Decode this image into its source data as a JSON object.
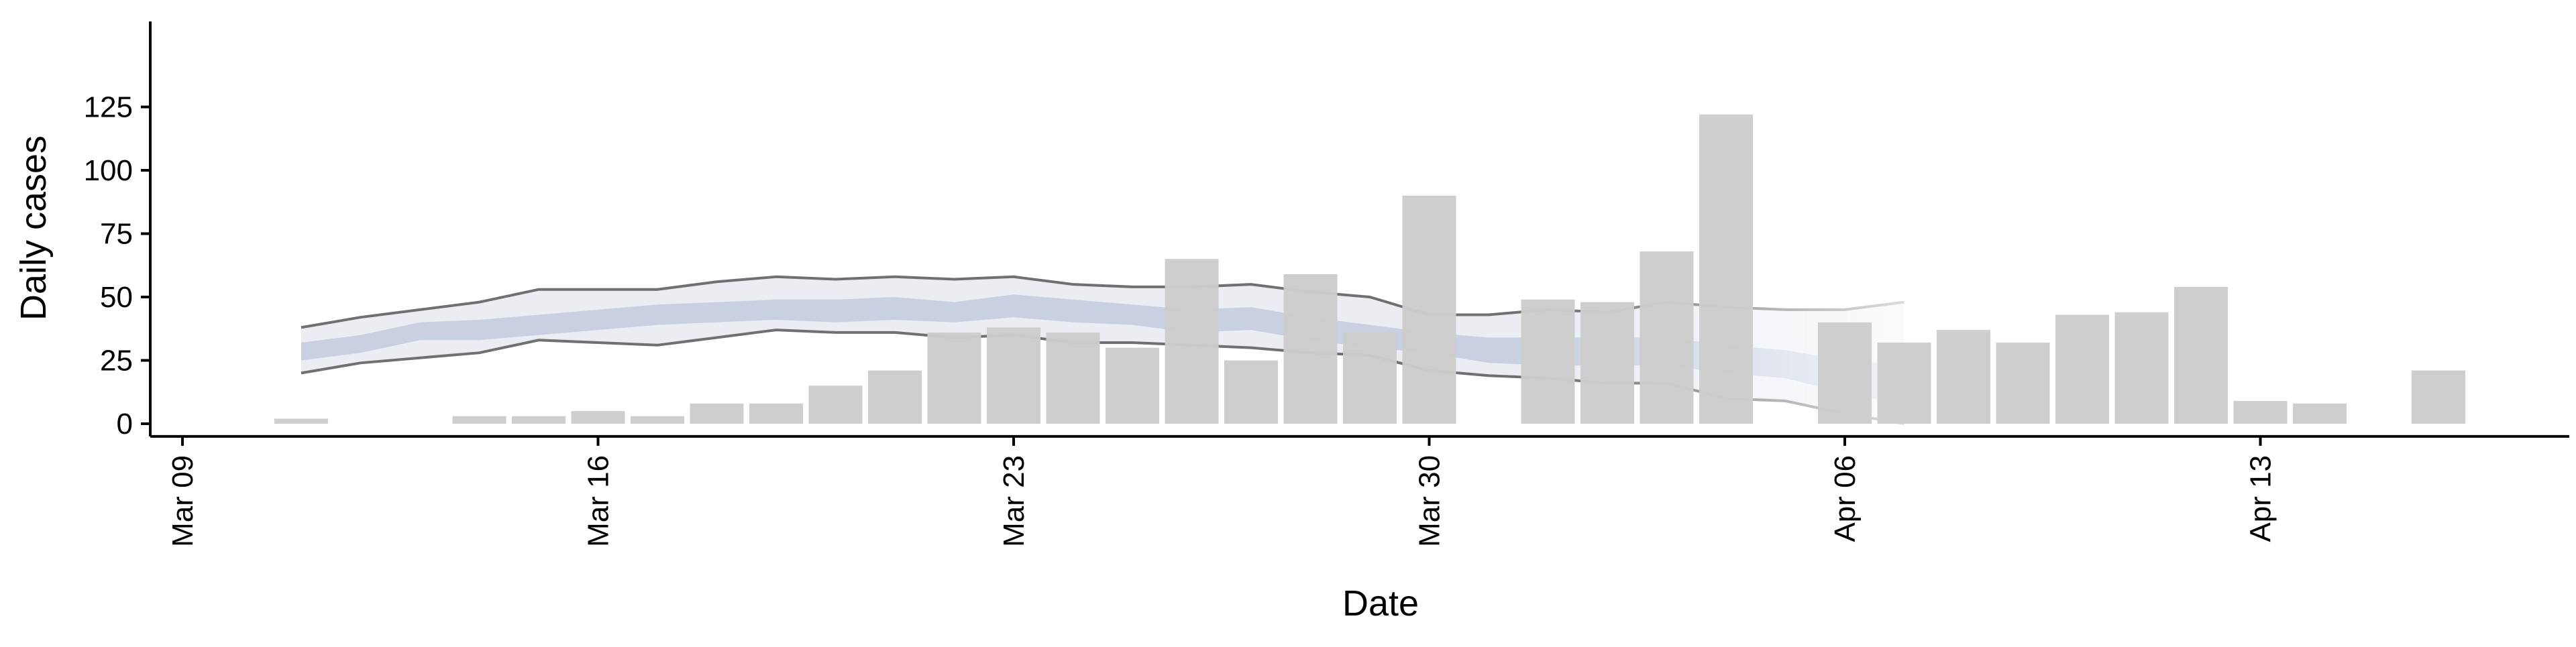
{
  "chart_data": {
    "type": "bar",
    "title": "",
    "xlabel": "Date",
    "ylabel": "Daily cases",
    "x_tick_labels": [
      "Mar 09",
      "Mar 16",
      "Mar 23",
      "Mar 30",
      "Apr 06",
      "Apr 13"
    ],
    "x_tick_dates": [
      "2020-03-09",
      "2020-03-16",
      "2020-03-23",
      "2020-03-30",
      "2020-04-06",
      "2020-04-13"
    ],
    "xlim": [
      "2020-03-09",
      "2020-04-19"
    ],
    "y_ticks": [
      0,
      25,
      50,
      75,
      100,
      125
    ],
    "ylim": [
      -5,
      127
    ],
    "grid": false,
    "legend": "none",
    "colors": {
      "bars": "#cccccc",
      "outer_band": "#e6e8f0",
      "inner_band": "#bcc5dc",
      "band_lines": "#707070",
      "axis": "#000000"
    },
    "bars": [
      {
        "date": "2020-03-11",
        "value": 2
      },
      {
        "date": "2020-03-14",
        "value": 3
      },
      {
        "date": "2020-03-15",
        "value": 3
      },
      {
        "date": "2020-03-16",
        "value": 5
      },
      {
        "date": "2020-03-17",
        "value": 3
      },
      {
        "date": "2020-03-18",
        "value": 8
      },
      {
        "date": "2020-03-19",
        "value": 8
      },
      {
        "date": "2020-03-20",
        "value": 15
      },
      {
        "date": "2020-03-21",
        "value": 21
      },
      {
        "date": "2020-03-22",
        "value": 36
      },
      {
        "date": "2020-03-23",
        "value": 38
      },
      {
        "date": "2020-03-24",
        "value": 36
      },
      {
        "date": "2020-03-25",
        "value": 30
      },
      {
        "date": "2020-03-26",
        "value": 65
      },
      {
        "date": "2020-03-27",
        "value": 25
      },
      {
        "date": "2020-03-28",
        "value": 59
      },
      {
        "date": "2020-03-29",
        "value": 36
      },
      {
        "date": "2020-03-30",
        "value": 90
      },
      {
        "date": "2020-04-01",
        "value": 49
      },
      {
        "date": "2020-04-02",
        "value": 48
      },
      {
        "date": "2020-04-03",
        "value": 68
      },
      {
        "date": "2020-04-04",
        "value": 122
      },
      {
        "date": "2020-04-06",
        "value": 40
      },
      {
        "date": "2020-04-07",
        "value": 32
      },
      {
        "date": "2020-04-08",
        "value": 37
      },
      {
        "date": "2020-04-09",
        "value": 32
      },
      {
        "date": "2020-04-10",
        "value": 43
      },
      {
        "date": "2020-04-11",
        "value": 44
      },
      {
        "date": "2020-04-12",
        "value": 54
      },
      {
        "date": "2020-04-13",
        "value": 9
      },
      {
        "date": "2020-04-14",
        "value": 8
      },
      {
        "date": "2020-04-16",
        "value": 21
      }
    ],
    "band_dates": [
      "2020-03-11",
      "2020-03-12",
      "2020-03-13",
      "2020-03-14",
      "2020-03-15",
      "2020-03-16",
      "2020-03-17",
      "2020-03-18",
      "2020-03-19",
      "2020-03-20",
      "2020-03-21",
      "2020-03-22",
      "2020-03-23",
      "2020-03-24",
      "2020-03-25",
      "2020-03-26",
      "2020-03-27",
      "2020-03-28",
      "2020-03-29",
      "2020-03-30",
      "2020-03-31",
      "2020-04-01",
      "2020-04-02",
      "2020-04-03",
      "2020-04-04",
      "2020-04-05",
      "2020-04-06",
      "2020-04-07"
    ],
    "outer_band": {
      "upper": [
        38,
        42,
        45,
        48,
        53,
        53,
        53,
        56,
        58,
        57,
        58,
        57,
        58,
        55,
        54,
        54,
        55,
        52,
        50,
        43,
        43,
        45,
        44,
        48,
        46,
        45,
        45,
        48
      ],
      "lower": [
        20,
        24,
        26,
        28,
        33,
        32,
        31,
        34,
        37,
        36,
        36,
        34,
        35,
        32,
        32,
        31,
        30,
        28,
        27,
        21,
        19,
        18,
        16,
        16,
        10,
        9,
        4,
        0
      ]
    },
    "inner_band": {
      "upper": [
        32,
        35,
        40,
        41,
        43,
        45,
        47,
        48,
        49,
        49,
        50,
        48,
        51,
        49,
        47,
        45,
        46,
        42,
        39,
        36,
        34,
        34,
        34,
        34,
        31,
        29,
        25,
        23
      ],
      "lower": [
        25,
        28,
        33,
        33,
        35,
        37,
        39,
        40,
        41,
        40,
        41,
        40,
        42,
        40,
        39,
        36,
        37,
        33,
        30,
        28,
        24,
        23,
        23,
        23,
        20,
        18,
        12,
        8
      ]
    }
  }
}
